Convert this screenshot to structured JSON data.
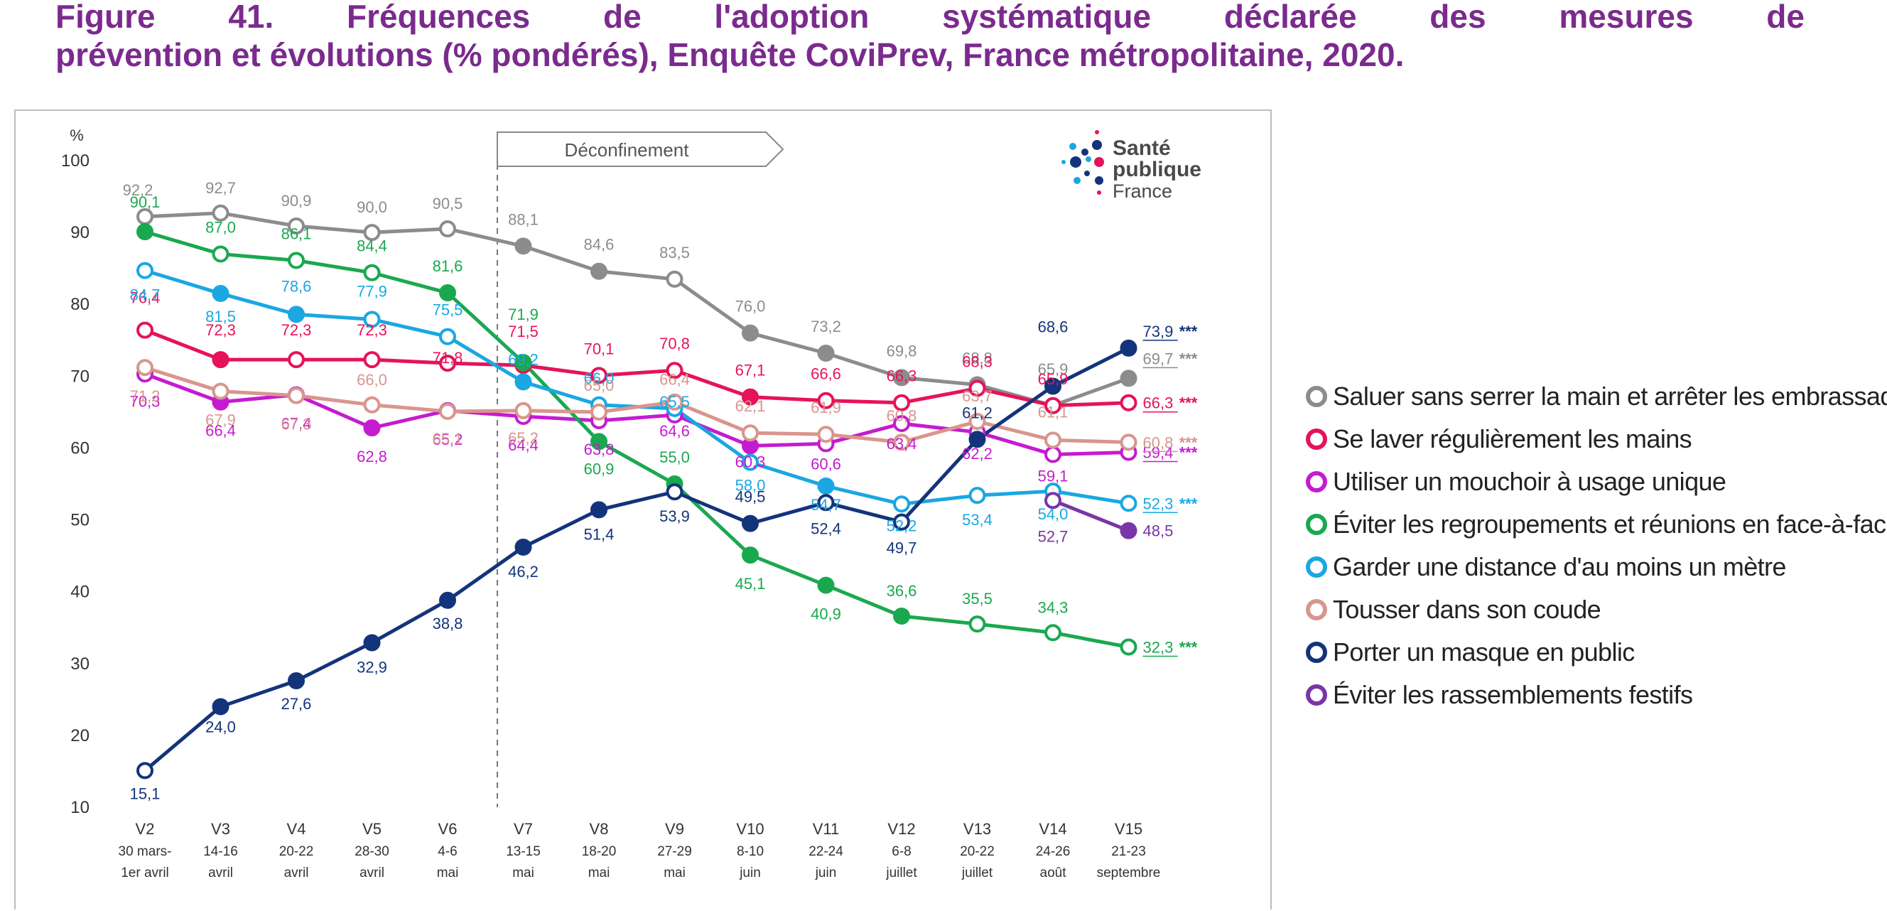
{
  "figure": {
    "title_line1": "Figure 41. Fréquences de l'adoption systématique déclarée des mesures de",
    "title_line2": "prévention et évolutions (% pondérés), Enquête CoviPrev, France métropolitaine, 2020."
  },
  "logo": {
    "line1": "Santé",
    "line2": "publique",
    "line3": "France"
  },
  "chart_data": {
    "type": "line",
    "y_unit": "%",
    "ylim": [
      10,
      100
    ],
    "yticks": [
      10,
      20,
      30,
      40,
      50,
      60,
      70,
      80,
      90,
      100
    ],
    "categories": [
      [
        "V2",
        "30 mars-",
        "1er avril"
      ],
      [
        "V3",
        "14-16",
        "avril"
      ],
      [
        "V4",
        "20-22",
        "avril"
      ],
      [
        "V5",
        "28-30",
        "avril"
      ],
      [
        "V6",
        "4-6",
        "mai"
      ],
      [
        "V7",
        "13-15",
        "mai"
      ],
      [
        "V8",
        "18-20",
        "mai"
      ],
      [
        "V9",
        "27-29",
        "mai"
      ],
      [
        "V10",
        "8-10",
        "juin"
      ],
      [
        "V11",
        "22-24",
        "juin"
      ],
      [
        "V12",
        "6-8",
        "juillet"
      ],
      [
        "V13",
        "20-22",
        "juillet"
      ],
      [
        "V14",
        "24-26",
        "août"
      ],
      [
        "V15",
        "21-23",
        "septembre"
      ]
    ],
    "annotation": {
      "label": "Déconfinement",
      "between": [
        "V6",
        "V7"
      ]
    },
    "significance_marker": "***",
    "series": [
      {
        "name": "Saluer sans serrer la main et arrêter les embrassades",
        "color": "#8c8c8c",
        "values": [
          92.2,
          92.7,
          90.9,
          90.0,
          90.5,
          88.1,
          84.6,
          83.5,
          76.0,
          73.2,
          69.8,
          68.8,
          65.9,
          69.7
        ],
        "labels": [
          "92,2",
          "92,7",
          "90,9",
          "90,0",
          "90,5",
          "88,1",
          "84,6",
          "83,5",
          "76,0",
          "73,2",
          "69,8",
          "68,8",
          "65,9",
          "69,7"
        ],
        "filled": [
          false,
          false,
          false,
          false,
          false,
          true,
          true,
          false,
          true,
          true,
          true,
          true,
          true,
          true
        ],
        "last_significant": true
      },
      {
        "name": "Se laver régulièrement les mains",
        "color": "#e6135a",
        "values": [
          76.4,
          72.3,
          72.3,
          72.3,
          71.8,
          71.5,
          70.1,
          70.8,
          67.1,
          66.6,
          66.3,
          68.3,
          65.9,
          66.3
        ],
        "labels": [
          "76,4",
          "72,3",
          "72,3",
          "72,3",
          "71,8",
          "71,5",
          "70,1",
          "70,8",
          "67,1",
          "66,6",
          "66,3",
          "68,3",
          "65,9",
          "66,3"
        ],
        "filled": [
          false,
          true,
          false,
          false,
          false,
          false,
          false,
          false,
          true,
          false,
          false,
          false,
          false,
          false
        ],
        "last_significant": true
      },
      {
        "name": "Utiliser un mouchoir à usage unique",
        "color": "#c51bd0",
        "values": [
          70.3,
          66.4,
          67.4,
          62.8,
          65.2,
          64.4,
          63.8,
          64.6,
          60.3,
          60.6,
          63.4,
          62.2,
          59.1,
          59.4
        ],
        "labels": [
          "70,3",
          "66,4",
          "67,4",
          "62,8",
          "65,2",
          "64,4",
          "63,8",
          "64,6",
          "60,3",
          "60,6",
          "63,4",
          "62,2",
          "59,1",
          "59,4"
        ],
        "filled": [
          false,
          true,
          false,
          true,
          false,
          false,
          false,
          false,
          true,
          false,
          false,
          false,
          false,
          false
        ],
        "last_significant": true
      },
      {
        "name": "Éviter les regroupements et réunions en face-à-face",
        "color": "#1aa84f",
        "values": [
          90.1,
          87.0,
          86.1,
          84.4,
          81.6,
          71.9,
          60.9,
          55.0,
          45.1,
          40.9,
          36.6,
          35.5,
          34.3,
          32.3
        ],
        "labels": [
          "90,1",
          "87,0",
          "86,1",
          "84,4",
          "81,6",
          "71,9",
          "60,9",
          "55,0",
          "45,1",
          "40,9",
          "36,6",
          "35,5",
          "34,3",
          "32,3"
        ],
        "filled": [
          true,
          false,
          false,
          false,
          true,
          true,
          true,
          true,
          true,
          true,
          true,
          false,
          false,
          false
        ],
        "last_significant": true
      },
      {
        "name": "Garder une distance d'au moins un mètre",
        "color": "#1aa7e2",
        "values": [
          84.7,
          81.5,
          78.6,
          77.9,
          75.5,
          69.2,
          66.0,
          65.5,
          58.0,
          54.7,
          52.2,
          53.4,
          54.0,
          52.3
        ],
        "labels": [
          "84,7",
          "81,5",
          "78,6",
          "77,9",
          "75,5",
          "69,2",
          "66,0",
          "65,5",
          "58,0",
          "54,7",
          "52,2",
          "53,4",
          "54,0",
          "52,3"
        ],
        "filled": [
          false,
          true,
          true,
          false,
          false,
          true,
          false,
          false,
          false,
          true,
          false,
          false,
          false,
          false
        ],
        "last_significant": true
      },
      {
        "name": "Tousser dans son coude",
        "color": "#d9958d",
        "values": [
          71.2,
          67.9,
          67.3,
          66.0,
          65.1,
          65.2,
          65.0,
          66.4,
          62.1,
          61.9,
          60.8,
          63.7,
          61.1,
          60.8
        ],
        "labels": [
          "71,2",
          "67,9",
          "67,3",
          "66,0",
          "65,1",
          "65,2",
          "65,0",
          "66,4",
          "62,1",
          "61,9",
          "60,8",
          "63,7",
          "61,1",
          "60,8"
        ],
        "filled": [
          false,
          false,
          false,
          false,
          false,
          false,
          false,
          false,
          false,
          false,
          false,
          false,
          false,
          false
        ],
        "last_significant": true
      },
      {
        "name": "Porter un masque en public",
        "color": "#13347b",
        "values": [
          15.1,
          24.0,
          27.6,
          32.9,
          38.8,
          46.2,
          51.4,
          53.9,
          49.5,
          52.4,
          49.7,
          61.2,
          68.6,
          73.9
        ],
        "labels": [
          "15,1",
          "24,0",
          "27,6",
          "32,9",
          "38,8",
          "46,2",
          "51,4",
          "53,9",
          "49,5",
          "52,4",
          "49,7",
          "61,2",
          "68,6",
          "73,9"
        ],
        "filled": [
          false,
          true,
          true,
          true,
          true,
          true,
          true,
          false,
          true,
          false,
          false,
          true,
          true,
          true
        ],
        "last_significant": true
      },
      {
        "name": "Éviter les rassemblements festifs",
        "color": "#7a35a8",
        "values": [
          null,
          null,
          null,
          null,
          null,
          null,
          null,
          null,
          null,
          null,
          null,
          null,
          52.7,
          48.5
        ],
        "labels": [
          "",
          "",
          "",
          "",
          "",
          "",
          "",
          "",
          "",
          "",
          "",
          "",
          "52,7",
          "48,5"
        ],
        "filled": [
          false,
          false,
          false,
          false,
          false,
          false,
          false,
          false,
          false,
          false,
          false,
          false,
          false,
          true
        ],
        "last_significant": false
      }
    ]
  }
}
